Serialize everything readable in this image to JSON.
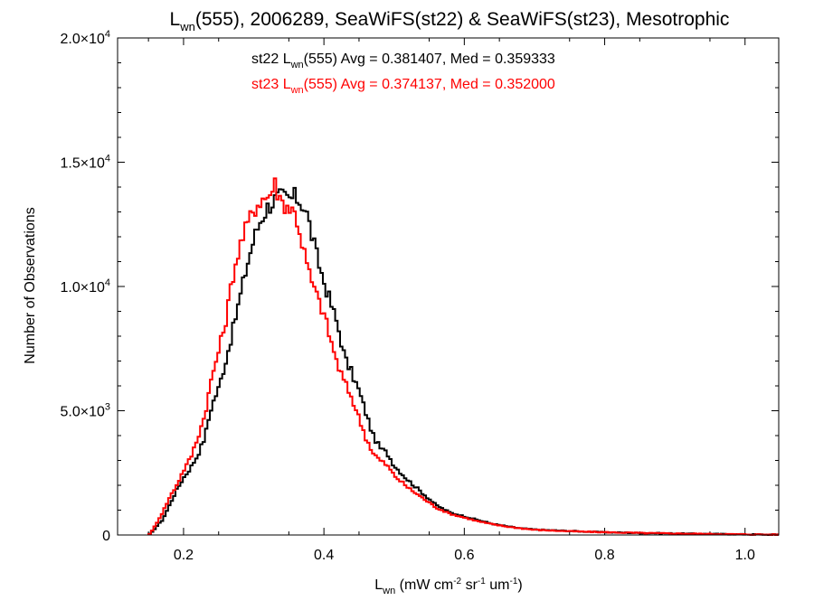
{
  "chart_data": {
    "type": "line",
    "style": "histogram-step",
    "title": {
      "main": "L",
      "sub": "wn",
      "rest": "(555), 2006289, SeaWiFS(st22) & SeaWiFS(st23), Mesotrophic"
    },
    "xlabel": {
      "main": "L",
      "sub": "wn",
      "rest": " (mW cm",
      "sup1": "-2",
      "mid1": " sr",
      "sup2": "-1",
      "mid2": " um",
      "sup3": "-1",
      "end": ")"
    },
    "ylabel": "Number of Observations",
    "xlim": [
      0.106,
      1.048
    ],
    "ylim": [
      0,
      20000
    ],
    "x_ticks": [
      {
        "value": 0.2,
        "label": "0.2"
      },
      {
        "value": 0.4,
        "label": "0.4"
      },
      {
        "value": 0.6,
        "label": "0.6"
      },
      {
        "value": 0.8,
        "label": "0.8"
      },
      {
        "value": 1.0,
        "label": "1.0"
      }
    ],
    "y_ticks": [
      {
        "value": 0,
        "label": "0",
        "sup": ""
      },
      {
        "value": 5000,
        "label": "5.0×10",
        "sup": "3"
      },
      {
        "value": 10000,
        "label": "1.0×10",
        "sup": "4"
      },
      {
        "value": 15000,
        "label": "1.5×10",
        "sup": "4"
      },
      {
        "value": 20000,
        "label": "2.0×10",
        "sup": "4"
      }
    ],
    "annotations": [
      {
        "pre": "st22 L",
        "sub": "wn",
        "post": "(555) Avg = 0.381407, Med = 0.359333",
        "color": "#000000"
      },
      {
        "pre": "st23 L",
        "sub": "wn",
        "post": "(555) Avg = 0.374137, Med = 0.352000",
        "color": "#ff0000"
      }
    ],
    "series": [
      {
        "name": "st22",
        "color": "#000000",
        "points": [
          [
            0.15,
            0
          ],
          [
            0.155,
            100
          ],
          [
            0.16,
            300
          ],
          [
            0.17,
            600
          ],
          [
            0.18,
            1200
          ],
          [
            0.19,
            1800
          ],
          [
            0.2,
            2300
          ],
          [
            0.21,
            2700
          ],
          [
            0.22,
            3200
          ],
          [
            0.23,
            3900
          ],
          [
            0.24,
            5200
          ],
          [
            0.25,
            5900
          ],
          [
            0.26,
            7000
          ],
          [
            0.27,
            8200
          ],
          [
            0.28,
            9500
          ],
          [
            0.29,
            10800
          ],
          [
            0.3,
            11900
          ],
          [
            0.31,
            12700
          ],
          [
            0.32,
            13200
          ],
          [
            0.33,
            13500
          ],
          [
            0.34,
            13600
          ],
          [
            0.35,
            13500
          ],
          [
            0.36,
            13600
          ],
          [
            0.37,
            13300
          ],
          [
            0.375,
            13000
          ],
          [
            0.38,
            12400
          ],
          [
            0.39,
            11200
          ],
          [
            0.4,
            10200
          ],
          [
            0.41,
            9300
          ],
          [
            0.42,
            8400
          ],
          [
            0.43,
            7100
          ],
          [
            0.44,
            6500
          ],
          [
            0.45,
            5800
          ],
          [
            0.46,
            4900
          ],
          [
            0.47,
            4000
          ],
          [
            0.48,
            3500
          ],
          [
            0.49,
            3300
          ],
          [
            0.5,
            2800
          ],
          [
            0.52,
            2200
          ],
          [
            0.54,
            1700
          ],
          [
            0.56,
            1200
          ],
          [
            0.58,
            900
          ],
          [
            0.6,
            750
          ],
          [
            0.62,
            600
          ],
          [
            0.64,
            450
          ],
          [
            0.66,
            350
          ],
          [
            0.68,
            270
          ],
          [
            0.7,
            220
          ],
          [
            0.75,
            160
          ],
          [
            0.8,
            110
          ],
          [
            0.85,
            80
          ],
          [
            0.9,
            60
          ],
          [
            0.95,
            40
          ],
          [
            1.0,
            25
          ],
          [
            1.04,
            15
          ]
        ]
      },
      {
        "name": "st23",
        "color": "#ff0000",
        "points": [
          [
            0.15,
            0
          ],
          [
            0.155,
            150
          ],
          [
            0.16,
            400
          ],
          [
            0.17,
            900
          ],
          [
            0.18,
            1500
          ],
          [
            0.19,
            2000
          ],
          [
            0.2,
            2600
          ],
          [
            0.21,
            3100
          ],
          [
            0.22,
            3900
          ],
          [
            0.23,
            4800
          ],
          [
            0.24,
            6300
          ],
          [
            0.25,
            7400
          ],
          [
            0.26,
            8600
          ],
          [
            0.27,
            10400
          ],
          [
            0.28,
            11600
          ],
          [
            0.29,
            12400
          ],
          [
            0.3,
            13100
          ],
          [
            0.31,
            13500
          ],
          [
            0.32,
            13600
          ],
          [
            0.33,
            14100
          ],
          [
            0.34,
            13400
          ],
          [
            0.35,
            13200
          ],
          [
            0.36,
            12900
          ],
          [
            0.37,
            11600
          ],
          [
            0.38,
            10400
          ],
          [
            0.39,
            9600
          ],
          [
            0.4,
            8900
          ],
          [
            0.41,
            7800
          ],
          [
            0.42,
            6800
          ],
          [
            0.43,
            6100
          ],
          [
            0.44,
            5500
          ],
          [
            0.45,
            4700
          ],
          [
            0.46,
            3900
          ],
          [
            0.47,
            3300
          ],
          [
            0.48,
            3000
          ],
          [
            0.49,
            2800
          ],
          [
            0.5,
            2400
          ],
          [
            0.52,
            1900
          ],
          [
            0.54,
            1500
          ],
          [
            0.56,
            1100
          ],
          [
            0.58,
            850
          ],
          [
            0.6,
            700
          ],
          [
            0.62,
            550
          ],
          [
            0.64,
            430
          ],
          [
            0.66,
            340
          ],
          [
            0.68,
            270
          ],
          [
            0.7,
            210
          ],
          [
            0.75,
            150
          ],
          [
            0.8,
            110
          ],
          [
            0.85,
            80
          ],
          [
            0.9,
            60
          ],
          [
            0.95,
            40
          ],
          [
            1.0,
            25
          ],
          [
            1.04,
            15
          ]
        ]
      }
    ]
  }
}
